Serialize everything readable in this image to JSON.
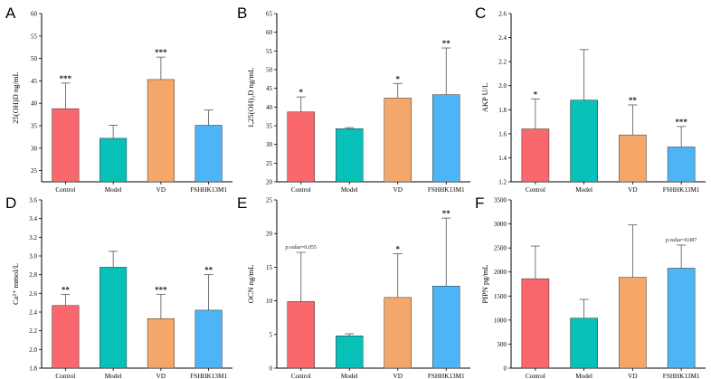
{
  "colors": {
    "Control": "#f8686c",
    "Model": "#07c0b8",
    "VD": "#f4a769",
    "FSHHK13M1": "#4db5f5",
    "axis": "#000000",
    "error": "#555555"
  },
  "chart_data": [
    {
      "panel": "A",
      "type": "bar",
      "ylabel": "25(OH)D ng/mL",
      "ylim": [
        22.5,
        60
      ],
      "yticks": [
        25,
        30,
        35,
        40,
        45,
        50,
        55,
        60
      ],
      "categories": [
        "Control",
        "Model",
        "VD",
        "FSHHK13M1"
      ],
      "values": [
        38.8,
        32.2,
        45.3,
        35.1
      ],
      "errors": [
        5.7,
        2.9,
        5.0,
        3.4
      ],
      "annotations": [
        "***",
        "",
        "***",
        ""
      ]
    },
    {
      "panel": "B",
      "type": "bar",
      "ylabel": "1,25(OH)₂D ng/mL",
      "ylim": [
        20,
        65
      ],
      "yticks": [
        20,
        25,
        30,
        35,
        40,
        45,
        50,
        55,
        60,
        65
      ],
      "categories": [
        "Control",
        "Model",
        "VD",
        "FSHHK13M1"
      ],
      "values": [
        38.7,
        34.2,
        42.4,
        43.3
      ],
      "errors": [
        4.0,
        0.3,
        3.9,
        12.5
      ],
      "annotations": [
        "*",
        "",
        "*",
        "**"
      ]
    },
    {
      "panel": "C",
      "type": "bar",
      "ylabel": "AKP U/L",
      "ylim": [
        1.2,
        2.6
      ],
      "yticks": [
        1.2,
        1.4,
        1.6,
        1.8,
        2.0,
        2.2,
        2.4,
        2.6
      ],
      "categories": [
        "Control",
        "Model",
        "VD",
        "FSHHK13M1"
      ],
      "values": [
        1.64,
        1.88,
        1.59,
        1.49
      ],
      "errors": [
        0.25,
        0.42,
        0.25,
        0.17
      ],
      "annotations": [
        "*",
        "",
        "**",
        "***"
      ]
    },
    {
      "panel": "D",
      "type": "bar",
      "ylabel": "Ca²⁺ mmol/L",
      "ylim": [
        1.8,
        3.6
      ],
      "yticks": [
        1.8,
        2.0,
        2.2,
        2.4,
        2.6,
        2.8,
        3.0,
        3.2,
        3.4,
        3.6
      ],
      "categories": [
        "Control",
        "Model",
        "VD",
        "FSHHK13M1"
      ],
      "values": [
        2.47,
        2.88,
        2.33,
        2.42
      ],
      "errors": [
        0.12,
        0.17,
        0.26,
        0.38
      ],
      "annotations": [
        "**",
        "",
        "***",
        "**"
      ]
    },
    {
      "panel": "E",
      "type": "bar",
      "ylabel": "OCN ng/mL",
      "ylim": [
        0,
        25
      ],
      "yticks": [
        0,
        5,
        10,
        15,
        20,
        25
      ],
      "categories": [
        "Control",
        "Model",
        "VD",
        "FSHHK13M1"
      ],
      "values": [
        9.9,
        4.8,
        10.5,
        12.2
      ],
      "errors": [
        7.3,
        0.3,
        6.5,
        10.1
      ],
      "annotations": [
        "p.value=0.055",
        "",
        "*",
        "**"
      ]
    },
    {
      "panel": "F",
      "type": "bar",
      "ylabel": "PIPN pg/mL",
      "ylim": [
        0,
        3500
      ],
      "yticks": [
        0,
        500,
        1000,
        1500,
        2000,
        2500,
        3000,
        3500
      ],
      "categories": [
        "Control",
        "Model",
        "VD",
        "FSHHK13M1"
      ],
      "values": [
        1860,
        1040,
        1890,
        2080
      ],
      "errors": [
        680,
        390,
        1090,
        480
      ],
      "annotations": [
        "",
        "",
        "",
        "p.value=0.087"
      ]
    }
  ]
}
